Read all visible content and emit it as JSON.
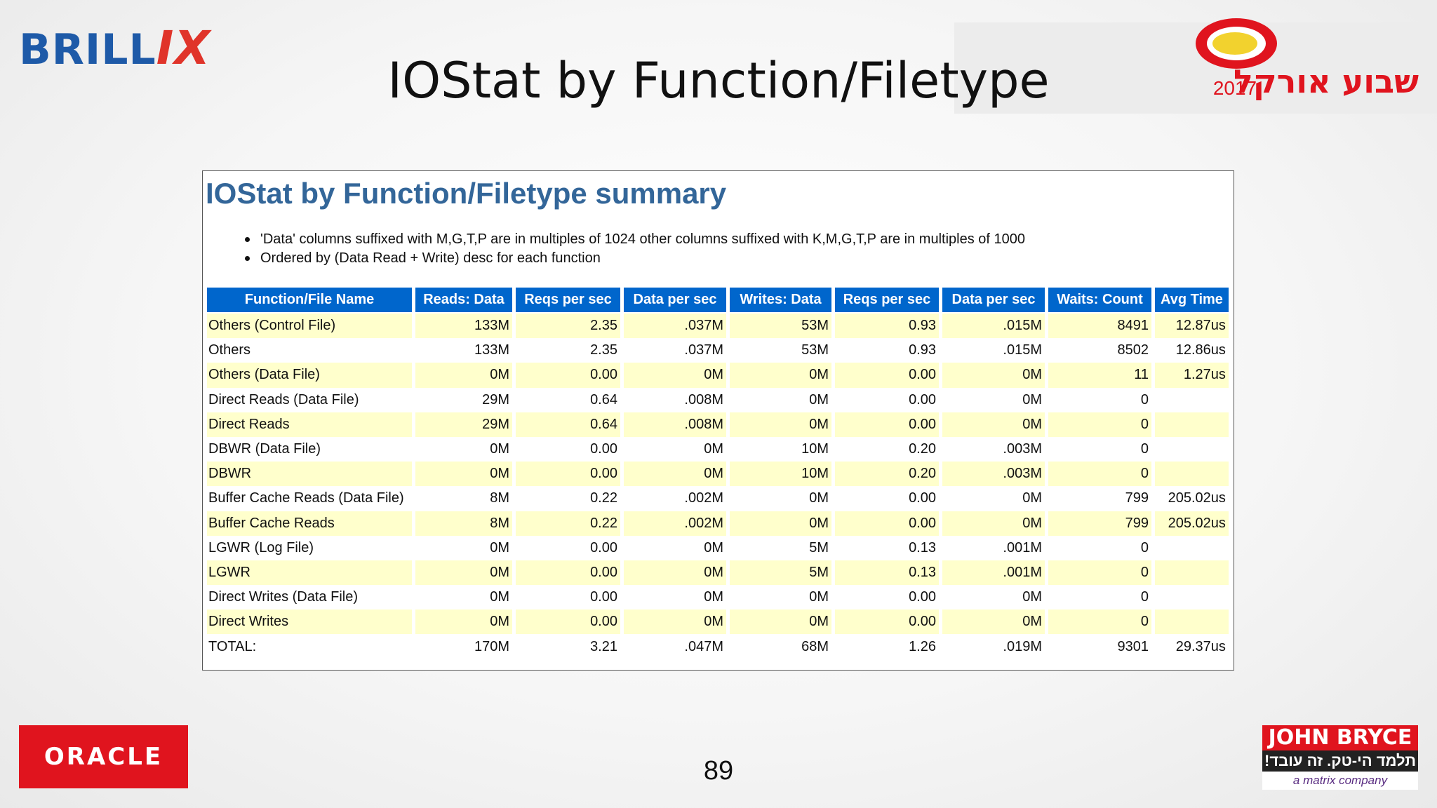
{
  "slide": {
    "title": "IOStat by Function/Filetype",
    "page_number": "89"
  },
  "logos": {
    "brillix_main": "BRILL",
    "brillix_x": "IX",
    "oracle": "ORACLE",
    "event_year": "2017",
    "event_name": "שבוע אורקל",
    "john_bryce": "JOHN BRYCE",
    "john_bryce_tagline": "תלמד הי-טק. זה עובד!",
    "john_bryce_sub": "a matrix company"
  },
  "report": {
    "heading": "IOStat by Function/Filetype summary",
    "notes": [
      "'Data' columns suffixed with M,G,T,P are in multiples of 1024 other columns suffixed with K,M,G,T,P are in multiples of 1000",
      "Ordered by (Data Read + Write) desc for each function"
    ],
    "columns": [
      "Function/File Name",
      "Reads: Data",
      "Reqs per sec",
      "Data per sec",
      "Writes: Data",
      "Reqs per sec",
      "Data per sec",
      "Waits: Count",
      "Avg Time"
    ],
    "rows": [
      [
        "Others (Control File)",
        "133M",
        "2.35",
        ".037M",
        "53M",
        "0.93",
        ".015M",
        "8491",
        "12.87us"
      ],
      [
        "Others",
        "133M",
        "2.35",
        ".037M",
        "53M",
        "0.93",
        ".015M",
        "8502",
        "12.86us"
      ],
      [
        "Others (Data File)",
        "0M",
        "0.00",
        "0M",
        "0M",
        "0.00",
        "0M",
        "11",
        "1.27us"
      ],
      [
        "Direct Reads (Data File)",
        "29M",
        "0.64",
        ".008M",
        "0M",
        "0.00",
        "0M",
        "0",
        ""
      ],
      [
        "Direct Reads",
        "29M",
        "0.64",
        ".008M",
        "0M",
        "0.00",
        "0M",
        "0",
        ""
      ],
      [
        "DBWR (Data File)",
        "0M",
        "0.00",
        "0M",
        "10M",
        "0.20",
        ".003M",
        "0",
        ""
      ],
      [
        "DBWR",
        "0M",
        "0.00",
        "0M",
        "10M",
        "0.20",
        ".003M",
        "0",
        ""
      ],
      [
        "Buffer Cache Reads (Data File)",
        "8M",
        "0.22",
        ".002M",
        "0M",
        "0.00",
        "0M",
        "799",
        "205.02us"
      ],
      [
        "Buffer Cache Reads",
        "8M",
        "0.22",
        ".002M",
        "0M",
        "0.00",
        "0M",
        "799",
        "205.02us"
      ],
      [
        "LGWR (Log File)",
        "0M",
        "0.00",
        "0M",
        "5M",
        "0.13",
        ".001M",
        "0",
        ""
      ],
      [
        "LGWR",
        "0M",
        "0.00",
        "0M",
        "5M",
        "0.13",
        ".001M",
        "0",
        ""
      ],
      [
        "Direct Writes (Data File)",
        "0M",
        "0.00",
        "0M",
        "0M",
        "0.00",
        "0M",
        "0",
        ""
      ],
      [
        "Direct Writes",
        "0M",
        "0.00",
        "0M",
        "0M",
        "0.00",
        "0M",
        "0",
        ""
      ],
      [
        "TOTAL:",
        "170M",
        "3.21",
        ".047M",
        "68M",
        "1.26",
        ".019M",
        "9301",
        "29.37us"
      ]
    ]
  },
  "colors": {
    "header_bg": "#0066cc",
    "row_highlight": "#ffffcc",
    "heading_text": "#336699",
    "oracle_red": "#e0141e",
    "brillix_blue": "#1e5aa8"
  }
}
